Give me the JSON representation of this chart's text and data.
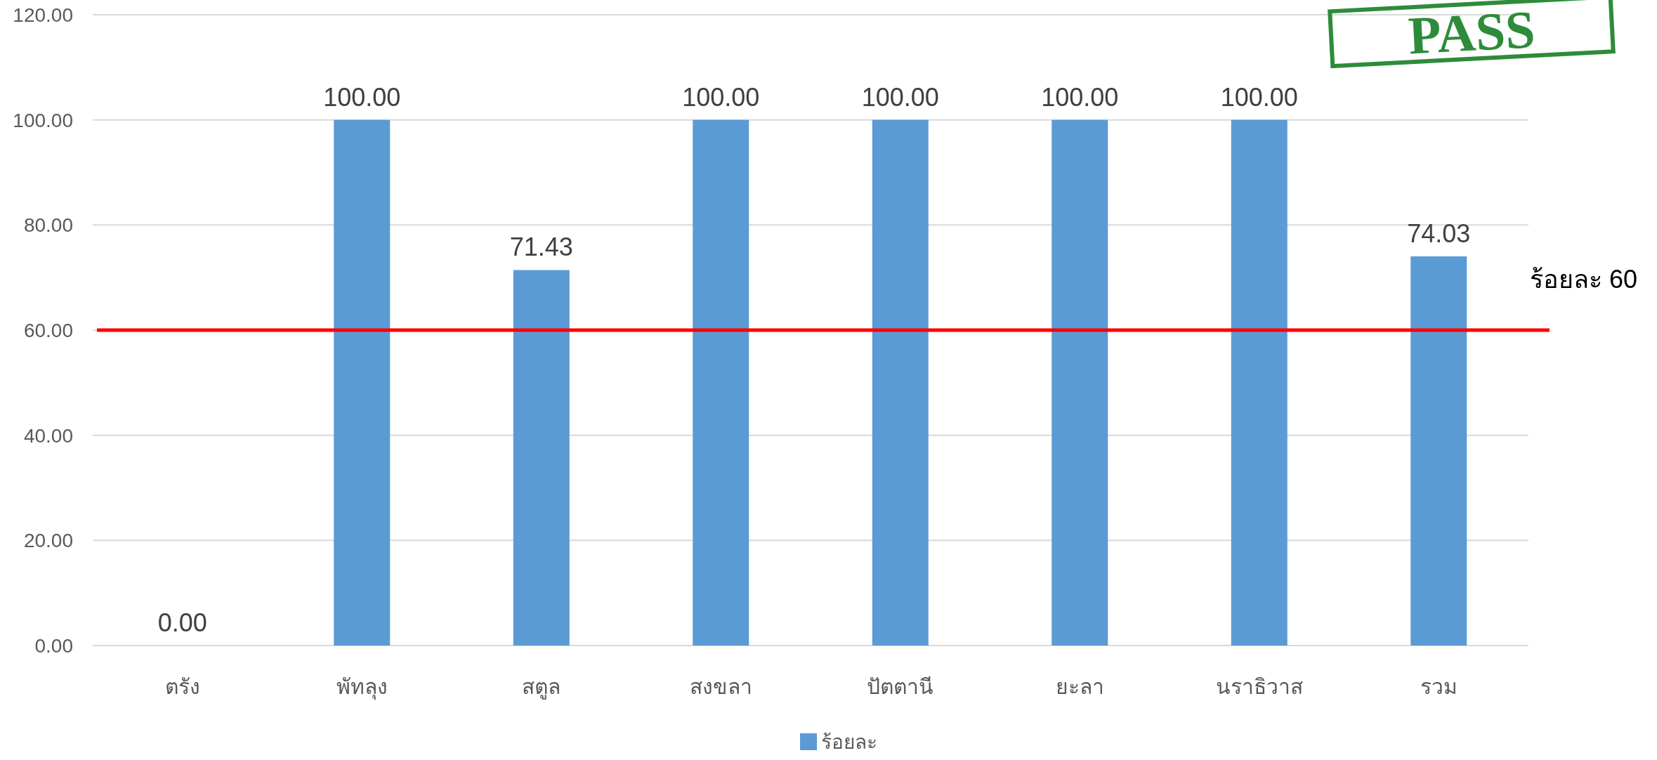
{
  "chart_data": {
    "type": "bar",
    "categories": [
      "ตรัง",
      "พัทลุง",
      "สตูล",
      "สงขลา",
      "ปัตตานี",
      "ยะลา",
      "นราธิวาส",
      "รวม"
    ],
    "series": [
      {
        "name": "ร้อยละ",
        "color": "#5b9bd5",
        "values": [
          0,
          100,
          71.43,
          100,
          100,
          100,
          100,
          74.03
        ],
        "value_labels": [
          "0.00",
          "100.00",
          "71.43",
          "100.00",
          "100.00",
          "100.00",
          "100.00",
          "74.03"
        ]
      }
    ],
    "ylim": [
      0,
      120
    ],
    "yticks": [
      {
        "value": 0,
        "label": "0.00"
      },
      {
        "value": 20,
        "label": "20.00"
      },
      {
        "value": 40,
        "label": "40.00"
      },
      {
        "value": 60,
        "label": "60.00"
      },
      {
        "value": 80,
        "label": "80.00"
      },
      {
        "value": 100,
        "label": "100.00"
      },
      {
        "value": 120,
        "label": "120.00"
      }
    ],
    "grid": "y",
    "legend": "bottom",
    "ref_lines": [
      {
        "axis": "y",
        "value": 60,
        "label": "ร้อยละ 60",
        "color": "#ff0000"
      }
    ],
    "annotations": [
      "PASS"
    ]
  }
}
